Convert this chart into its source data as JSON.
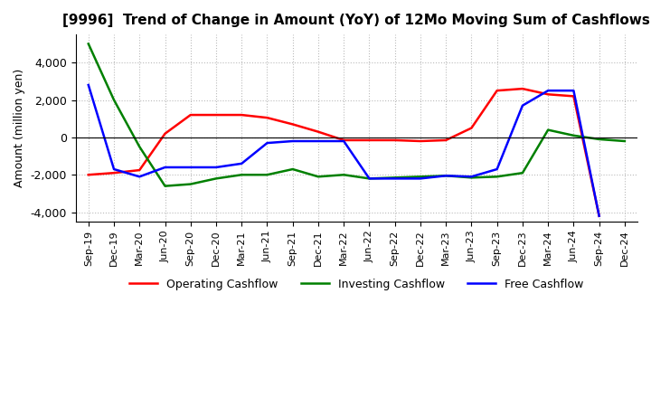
{
  "title": "[9996]  Trend of Change in Amount (YoY) of 12Mo Moving Sum of Cashflows",
  "ylabel": "Amount (million yen)",
  "ylim": [
    -4500,
    5500
  ],
  "yticks": [
    -4000,
    -2000,
    0,
    2000,
    4000
  ],
  "x_labels": [
    "Sep-19",
    "Dec-19",
    "Mar-20",
    "Jun-20",
    "Sep-20",
    "Dec-20",
    "Mar-21",
    "Jun-21",
    "Sep-21",
    "Dec-21",
    "Mar-22",
    "Jun-22",
    "Sep-22",
    "Dec-22",
    "Mar-23",
    "Jun-23",
    "Sep-23",
    "Dec-23",
    "Mar-24",
    "Jun-24",
    "Sep-24",
    "Dec-24"
  ],
  "operating": [
    -2000,
    -1900,
    -1750,
    200,
    1200,
    1200,
    1200,
    1050,
    700,
    300,
    -150,
    -150,
    -150,
    -200,
    -150,
    500,
    2500,
    2600,
    2300,
    2200,
    -4200,
    null
  ],
  "investing": [
    5000,
    2000,
    -500,
    -2600,
    -2500,
    -2200,
    -2000,
    -2000,
    -1700,
    -2100,
    -2000,
    -2200,
    -2150,
    -2100,
    -2050,
    -2150,
    -2100,
    -1900,
    400,
    100,
    -100,
    -200
  ],
  "free": [
    2800,
    -1700,
    -2100,
    -1600,
    -1600,
    -1600,
    -1400,
    -300,
    -200,
    -200,
    -200,
    -2200,
    -2200,
    -2200,
    -2050,
    -2100,
    -1700,
    1700,
    2500,
    2500,
    -4200,
    null
  ],
  "operating_color": "#ff0000",
  "investing_color": "#008000",
  "free_color": "#0000ff",
  "background_color": "#ffffff",
  "grid_color": "#bbbbbb"
}
